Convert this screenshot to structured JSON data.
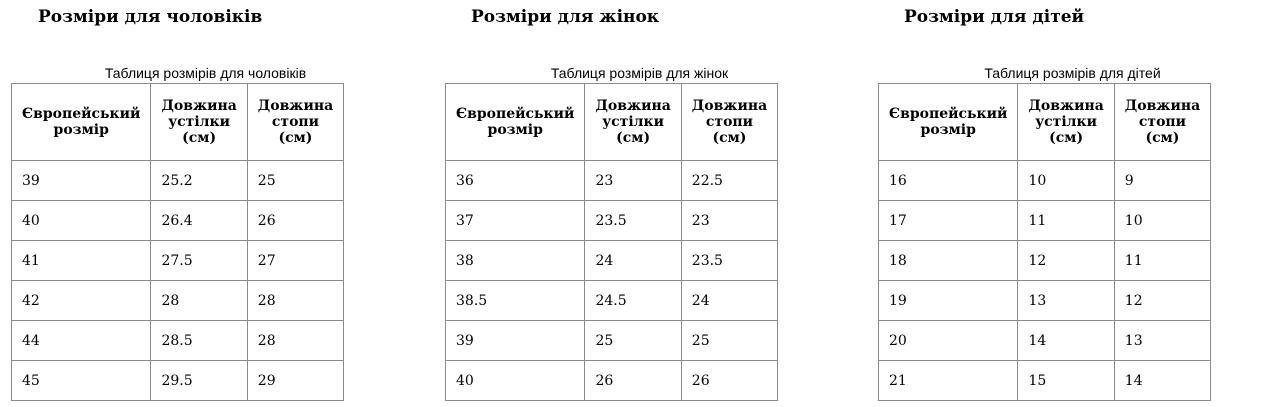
{
  "tables": [
    {
      "title": "Розміри для чоловіків",
      "caption": "Таблиця розмірів для чоловіків",
      "headers": [
        "Європейський розмір",
        "Довжина устілки (см)",
        "Довжина стопи (см)"
      ],
      "rows": [
        [
          "39",
          "25.2",
          "25"
        ],
        [
          "40",
          "26.4",
          "26"
        ],
        [
          "41",
          "27.5",
          "27"
        ],
        [
          "42",
          "28",
          "28"
        ],
        [
          "44",
          "28.5",
          "28"
        ],
        [
          "45",
          "29.5",
          "29"
        ]
      ]
    },
    {
      "title": "Розміри для жінок",
      "caption": "Таблиця розмірів для жінок",
      "headers": [
        "Європейський розмір",
        "Довжина устілки (см)",
        "Довжина стопи (см)"
      ],
      "rows": [
        [
          "36",
          "23",
          "22.5"
        ],
        [
          "37",
          "23.5",
          "23"
        ],
        [
          "38",
          "24",
          "23.5"
        ],
        [
          "38.5",
          "24.5",
          "24"
        ],
        [
          "39",
          "25",
          "25"
        ],
        [
          "40",
          "26",
          "26"
        ]
      ]
    },
    {
      "title": "Розміри для дітей",
      "caption": "Таблиця розмірів для дітей",
      "headers": [
        "Європейський розмір",
        "Довжина устілки (см)",
        "Довжина стопи (см)"
      ],
      "rows": [
        [
          "16",
          "10",
          "9"
        ],
        [
          "17",
          "11",
          "10"
        ],
        [
          "18",
          "12",
          "11"
        ],
        [
          "19",
          "13",
          "12"
        ],
        [
          "20",
          "14",
          "13"
        ],
        [
          "21",
          "15",
          "14"
        ]
      ]
    }
  ]
}
